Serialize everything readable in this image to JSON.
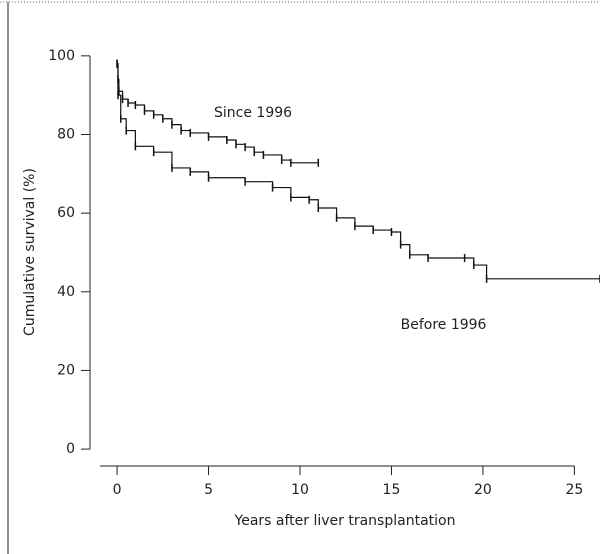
{
  "chart_data": {
    "type": "line",
    "x_label": "Years after liver transplantation",
    "y_label": "Cumulative survival  (%)",
    "xlim": [
      -1.48,
      26.4
    ],
    "ylim": [
      -4.3,
      114.2
    ],
    "xticks": [
      0,
      5,
      10,
      15,
      20,
      25
    ],
    "yticks": [
      0,
      20,
      40,
      60,
      80,
      100
    ],
    "step": true,
    "annotations": [
      {
        "text": "Since 1996",
        "x": 5.3,
        "y": 85.5
      },
      {
        "text": "Before 1996",
        "x": 15.5,
        "y": 31.5
      }
    ],
    "series": [
      {
        "name": "Since 1996",
        "color": "#111111",
        "x": [
          0,
          0.05,
          0.1,
          0.3,
          0.6,
          1,
          1.5,
          2,
          2.5,
          3,
          3.5,
          4,
          5,
          6,
          6.5,
          7,
          7.5,
          8,
          9,
          9.5,
          11
        ],
        "values": [
          98,
          94,
          91,
          89,
          88,
          87.5,
          86,
          85,
          84,
          82.5,
          81,
          80.4,
          79.4,
          78.6,
          77.5,
          76.8,
          75.5,
          74.8,
          73.5,
          72.8,
          72.8
        ]
      },
      {
        "name": "Before 1996",
        "color": "#111111",
        "x": [
          0,
          0.05,
          0.2,
          0.5,
          1,
          2,
          3,
          4,
          5,
          7,
          8.5,
          9.5,
          10.5,
          11,
          12,
          13,
          14,
          15,
          15.5,
          16,
          17,
          19,
          19.5,
          20.2,
          26.4
        ],
        "values": [
          98,
          90,
          84,
          81,
          77,
          75.5,
          71.5,
          70.5,
          69,
          68,
          66.5,
          64,
          63.4,
          61.3,
          58.8,
          56.7,
          55.7,
          55.2,
          52,
          49.4,
          48.6,
          48.6,
          46.8,
          43.3,
          43.3
        ]
      }
    ]
  }
}
